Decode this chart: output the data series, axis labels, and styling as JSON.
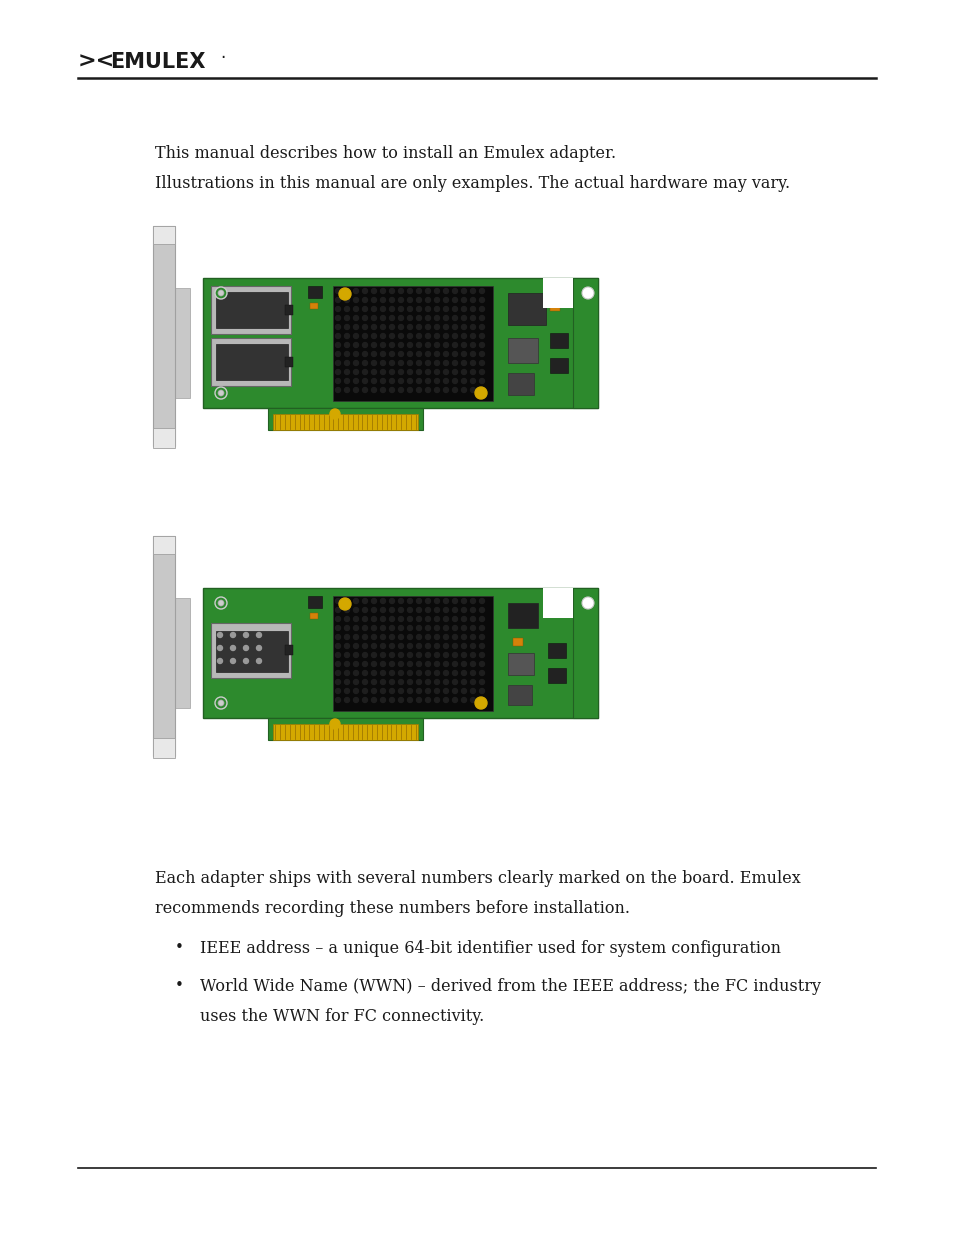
{
  "bg_color": "#ffffff",
  "text_color": "#1a1a1a",
  "pcb_color": "#2d8a2d",
  "pcb_dark": "#226022",
  "chip_color": "#111111",
  "chip_dot_color": "#1e1e1e",
  "bracket_light": "#e8e8e8",
  "bracket_mid": "#c8c8c8",
  "bracket_dark": "#a0a0a0",
  "connector_silver": "#b8b8b8",
  "connector_dark": "#888888",
  "gold_color": "#d4a800",
  "gold_light": "#f0c830",
  "gold_dark": "#a07800",
  "comp_dark": "#222222",
  "comp_gray": "#666666",
  "comp_lgray": "#999999",
  "white_dot": "#f0f0f0",
  "amber": "#d4820a",
  "intro_line1": "This manual describes how to install an Emulex adapter.",
  "intro_line2": "Illustrations in this manual are only examples. The actual hardware may vary.",
  "body_line1": "Each adapter ships with several numbers clearly marked on the board. Emulex",
  "body_line2": "recommends recording these numbers before installation.",
  "bullet1": "IEEE address – a unique 64-bit identifier used for system configuration",
  "bullet2a": "World Wide Name (WWN) – derived from the IEEE address; the FC industry",
  "bullet2b": "uses the WWN for FC connectivity.",
  "font_size": 11.5
}
